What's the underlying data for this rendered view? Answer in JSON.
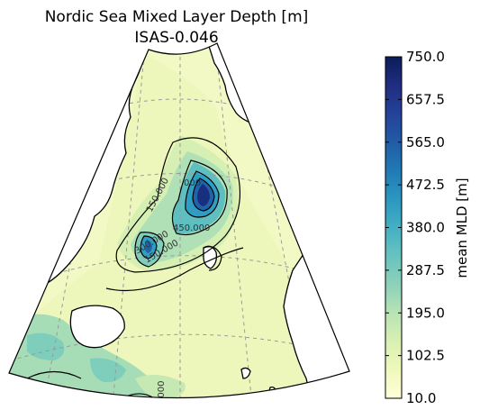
{
  "title": {
    "line1": "Nordic Sea Mixed Layer Depth [m]",
    "line2": "ISAS-0.046"
  },
  "colorbar": {
    "label": "mean MLD [m]",
    "ticks": [
      "750.0",
      "657.5",
      "565.0",
      "472.5",
      "380.0",
      "287.5",
      "195.0",
      "102.5",
      "10.0"
    ],
    "colors": [
      "#ffffd9",
      "#f4fbc0",
      "#e4f4b3",
      "#c9e9b4",
      "#a8ddb6",
      "#7fcdbb",
      "#5bbdc0",
      "#3ea9c2",
      "#2693be",
      "#1e78b4",
      "#2159a5",
      "#233e96",
      "#1d2a7b",
      "#0d1f5a"
    ],
    "vmin": 10.0,
    "vmax": 750.0
  },
  "contours": {
    "levels_labeled": [
      "150.000",
      "300.000",
      "450.000",
      "300.000",
      "150.000"
    ],
    "label_150_top": "150.000",
    "label_450_mid": "450.000",
    "label_300_mid": "300.000",
    "label_150_low": "150.000",
    "label_bottom": "0000",
    "label_top_small": "000"
  }
}
